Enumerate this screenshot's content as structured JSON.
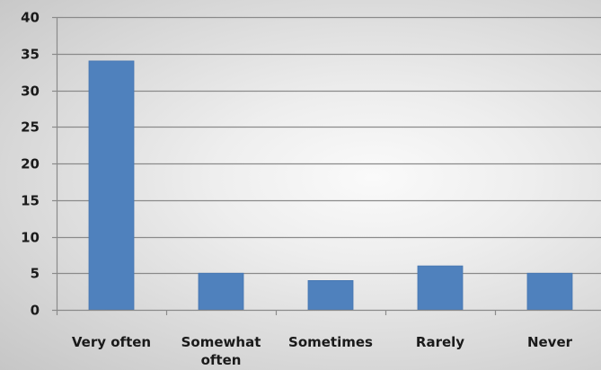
{
  "chart_data": {
    "type": "bar",
    "categories": [
      "Very often",
      "Somewhat often",
      "Sometimes",
      "Rarely",
      "Never"
    ],
    "category_label_lines": [
      [
        "Very often"
      ],
      [
        "Somewhat",
        "often"
      ],
      [
        "Sometimes"
      ],
      [
        "Rarely"
      ],
      [
        "Never"
      ]
    ],
    "values": [
      34,
      5,
      4,
      6,
      5
    ],
    "ylim": [
      0,
      40
    ],
    "yticks": [
      0,
      5,
      10,
      15,
      20,
      25,
      30,
      35,
      40
    ],
    "grid": true,
    "legend": "none",
    "colors": {
      "bar": "#4F81BD",
      "bar_edge": "#4575b0",
      "grid": "#8a8a8a",
      "axis": "#8a8a8a",
      "text": "#1a1a1a"
    }
  }
}
